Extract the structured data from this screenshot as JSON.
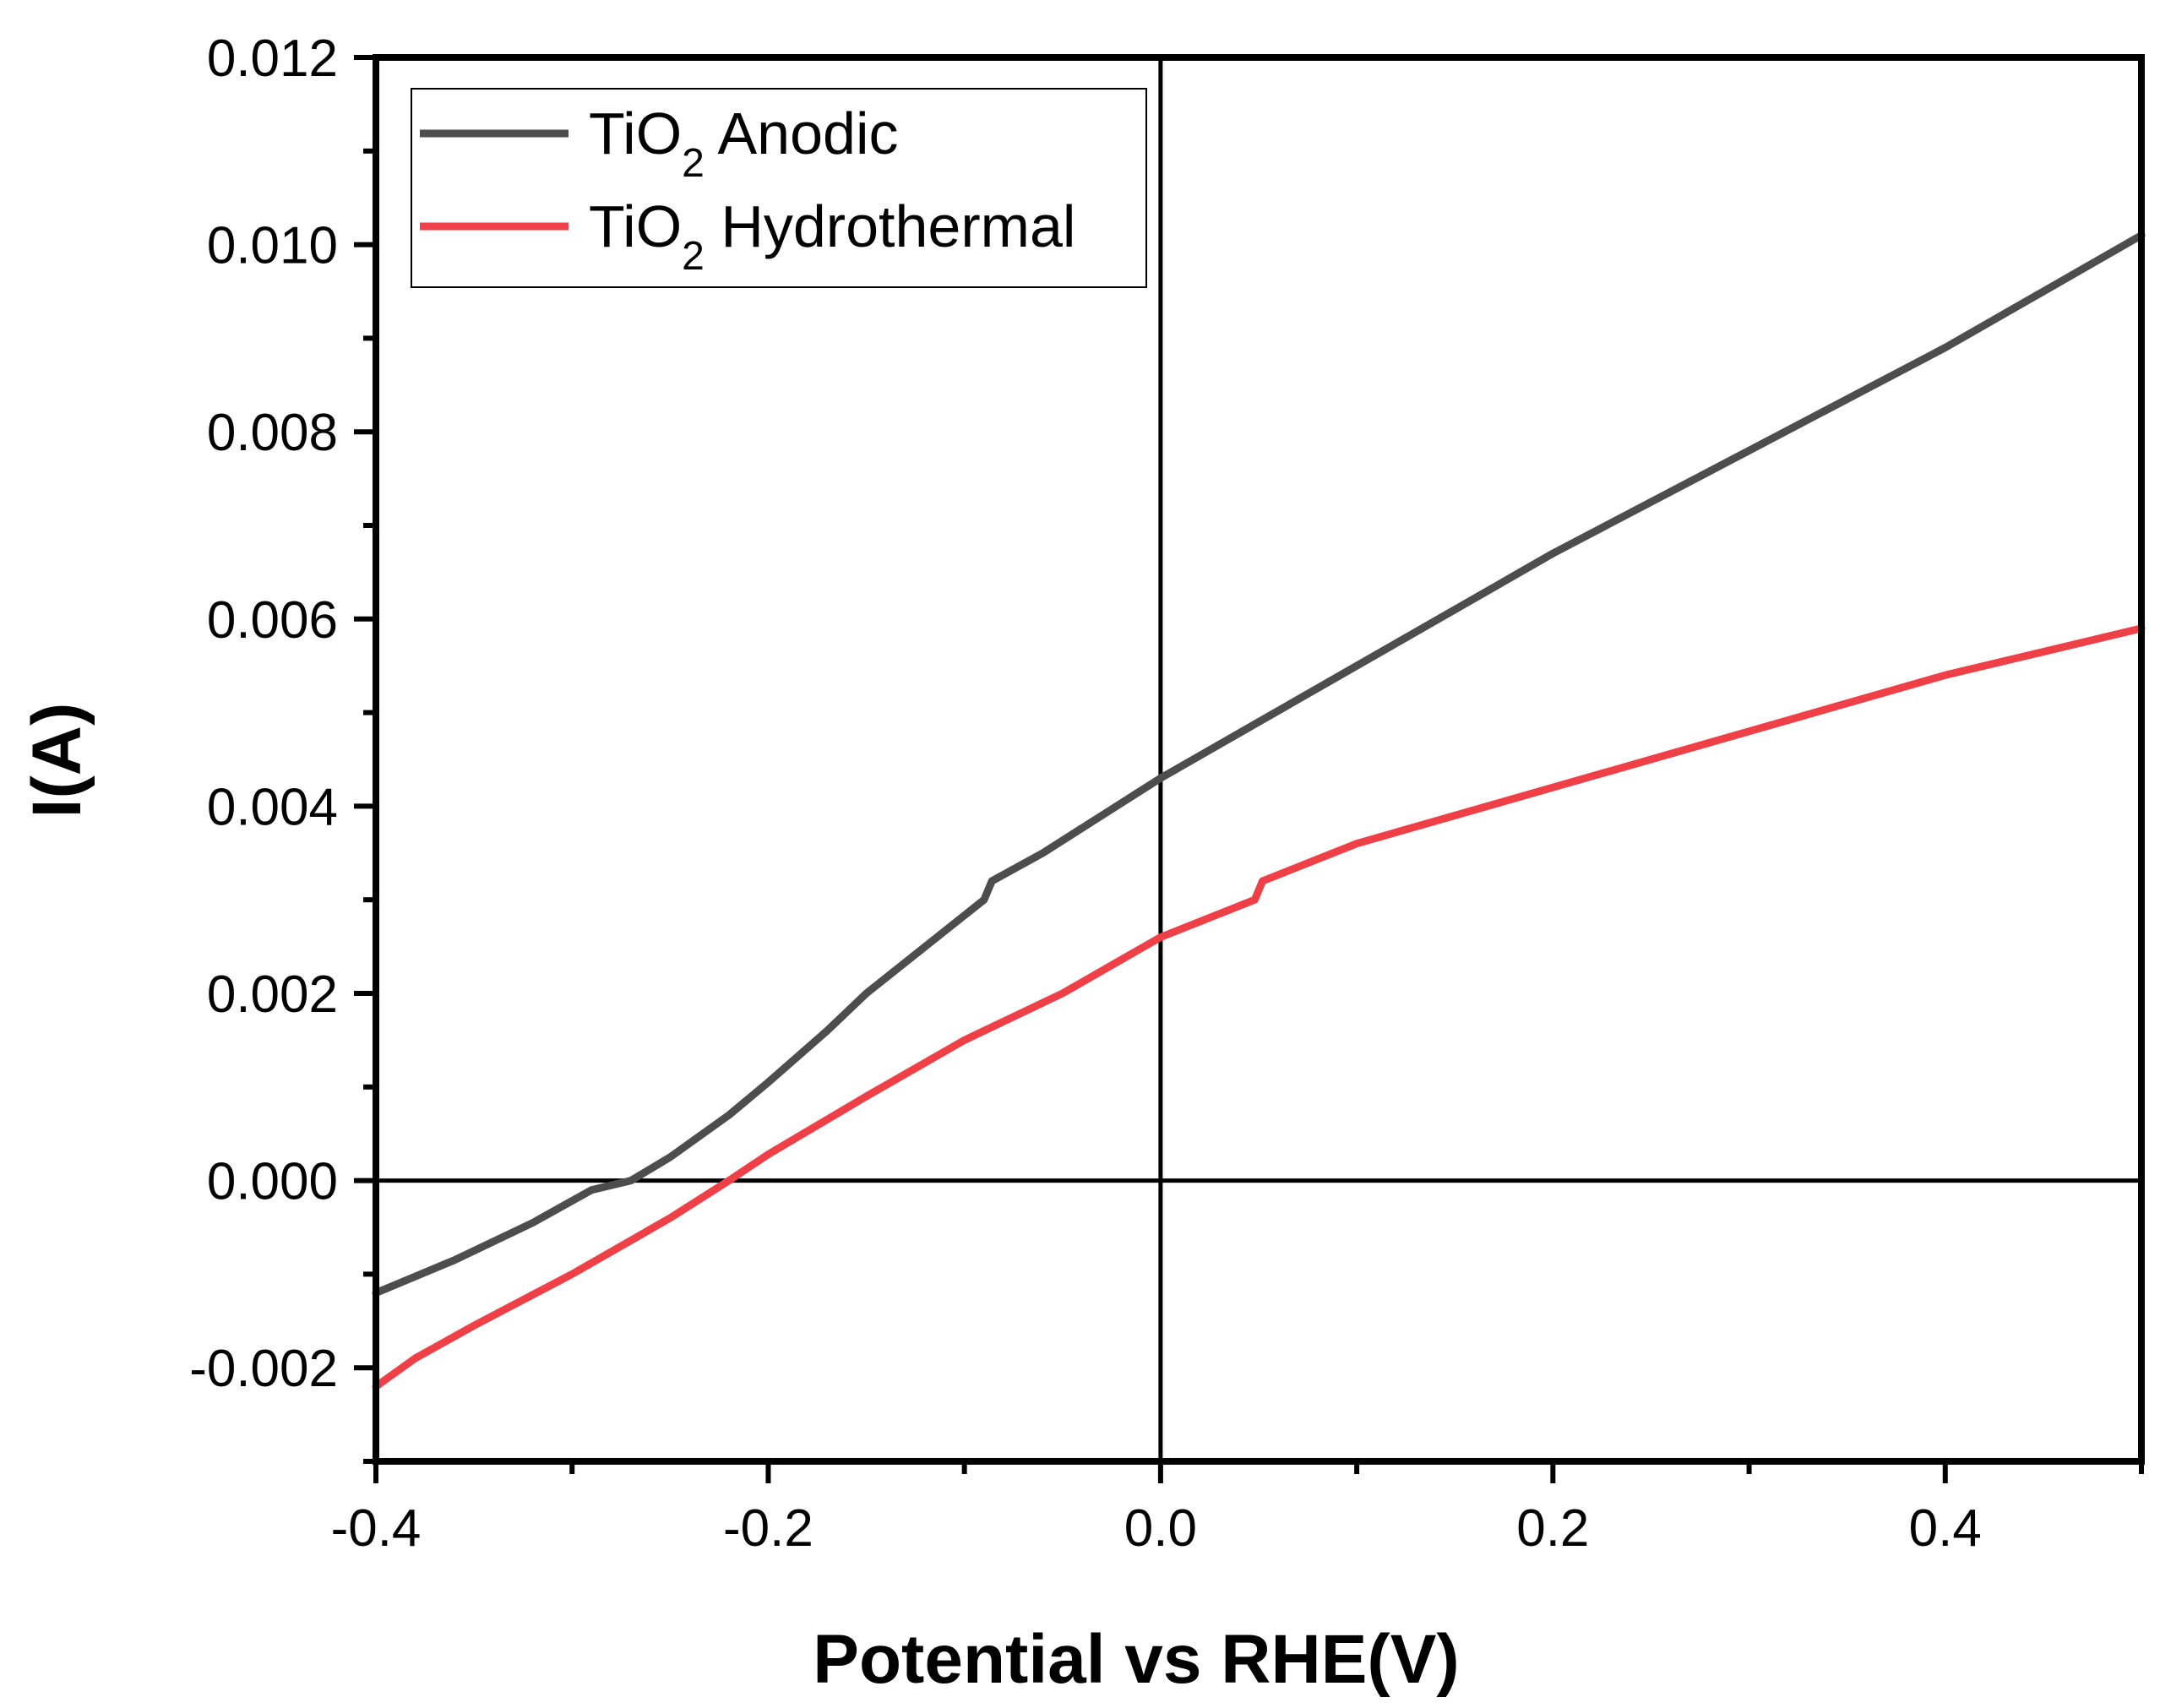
{
  "chart_data": {
    "type": "line",
    "title": "",
    "xlabel": "Potential vs RHE(V)",
    "ylabel": "I(A)",
    "xlim": [
      -0.4,
      0.5
    ],
    "ylim": [
      -0.003,
      0.012
    ],
    "x_ticks": [
      -0.4,
      -0.2,
      0.0,
      0.2,
      0.4
    ],
    "x_tick_labels": [
      "-0.4",
      "-0.2",
      "0.0",
      "0.2",
      "0.4"
    ],
    "y_ticks": [
      -0.002,
      0.0,
      0.002,
      0.004,
      0.006,
      0.008,
      0.01,
      0.012
    ],
    "y_tick_labels": [
      "-0.002",
      "0.000",
      "0.002",
      "0.004",
      "0.006",
      "0.008",
      "0.010",
      "0.012"
    ],
    "reference_lines": {
      "x": 0.0,
      "y": 0.0
    },
    "grid": false,
    "legend_position": "top-left",
    "series": [
      {
        "name": "TiO2 Anodic",
        "name_base": "TiO",
        "name_sub": "2",
        "name_rest": "Anodic",
        "color": "#4d4d4d",
        "points": [
          [
            -0.4,
            -0.0012
          ],
          [
            -0.36,
            -0.00085
          ],
          [
            -0.32,
            -0.00045
          ],
          [
            -0.29,
            -0.0001
          ],
          [
            -0.27,
            0.0
          ],
          [
            -0.25,
            0.00025
          ],
          [
            -0.22,
            0.0007
          ],
          [
            -0.2,
            0.00105
          ],
          [
            -0.17,
            0.0016
          ],
          [
            -0.15,
            0.002
          ],
          [
            -0.12,
            0.0025
          ],
          [
            -0.09,
            0.003
          ],
          [
            -0.086,
            0.0032
          ],
          [
            -0.06,
            0.0035
          ],
          [
            -0.03,
            0.0039
          ],
          [
            0.0,
            0.0043
          ],
          [
            0.05,
            0.0049
          ],
          [
            0.1,
            0.0055
          ],
          [
            0.2,
            0.0067
          ],
          [
            0.3,
            0.0078
          ],
          [
            0.4,
            0.0089
          ],
          [
            0.5,
            0.0101
          ]
        ]
      },
      {
        "name": "TiO2 Hydrothermal",
        "name_base": "TiO",
        "name_sub": "2",
        "name_rest": "Hydrothermal",
        "color": "#ef4047",
        "points": [
          [
            -0.4,
            -0.0022
          ],
          [
            -0.38,
            -0.0019
          ],
          [
            -0.35,
            -0.00155
          ],
          [
            -0.3,
            -0.001
          ],
          [
            -0.25,
            -0.0004
          ],
          [
            -0.22,
            0.0
          ],
          [
            -0.2,
            0.00028
          ],
          [
            -0.15,
            0.0009
          ],
          [
            -0.1,
            0.0015
          ],
          [
            -0.05,
            0.002
          ],
          [
            0.0,
            0.0026
          ],
          [
            0.048,
            0.003
          ],
          [
            0.052,
            0.0032
          ],
          [
            0.1,
            0.0036
          ],
          [
            0.2,
            0.0042
          ],
          [
            0.3,
            0.0048
          ],
          [
            0.4,
            0.0054
          ],
          [
            0.5,
            0.0059
          ]
        ]
      }
    ]
  }
}
